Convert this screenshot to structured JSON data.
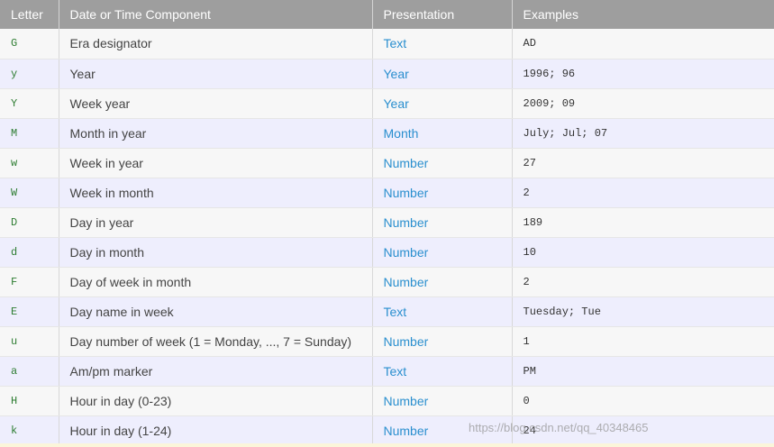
{
  "headers": {
    "letter": "Letter",
    "component": "Date or Time Component",
    "presentation": "Presentation",
    "examples": "Examples"
  },
  "rows": [
    {
      "letter": "G",
      "component": "Era designator",
      "presentation": "Text",
      "examples": "AD"
    },
    {
      "letter": "y",
      "component": "Year",
      "presentation": "Year",
      "examples": "1996; 96"
    },
    {
      "letter": "Y",
      "component": "Week year",
      "presentation": "Year",
      "examples": "2009; 09"
    },
    {
      "letter": "M",
      "component": "Month in year",
      "presentation": "Month",
      "examples": "July; Jul; 07"
    },
    {
      "letter": "w",
      "component": "Week in year",
      "presentation": "Number",
      "examples": "27"
    },
    {
      "letter": "W",
      "component": "Week in month",
      "presentation": "Number",
      "examples": "2"
    },
    {
      "letter": "D",
      "component": "Day in year",
      "presentation": "Number",
      "examples": "189"
    },
    {
      "letter": "d",
      "component": "Day in month",
      "presentation": "Number",
      "examples": "10"
    },
    {
      "letter": "F",
      "component": "Day of week in month",
      "presentation": "Number",
      "examples": "2"
    },
    {
      "letter": "E",
      "component": "Day name in week",
      "presentation": "Text",
      "examples": "Tuesday; Tue"
    },
    {
      "letter": "u",
      "component": "Day number of week (1 = Monday, ..., 7 = Sunday)",
      "presentation": "Number",
      "examples": "1"
    },
    {
      "letter": "a",
      "component": "Am/pm marker",
      "presentation": "Text",
      "examples": "PM"
    },
    {
      "letter": "H",
      "component": "Hour in day (0-23)",
      "presentation": "Number",
      "examples": "0"
    },
    {
      "letter": "k",
      "component": "Hour in day (1-24)",
      "presentation": "Number",
      "examples": "24"
    }
  ],
  "watermark": "https://blog.csdn.net/qq_40348465",
  "colors": {
    "header_bg": "#9e9e9e",
    "row_odd": "#f7f7f7",
    "row_even": "#eeeefd",
    "presentation_text": "#2a8fcf",
    "letter_text": "#2e7d32"
  }
}
